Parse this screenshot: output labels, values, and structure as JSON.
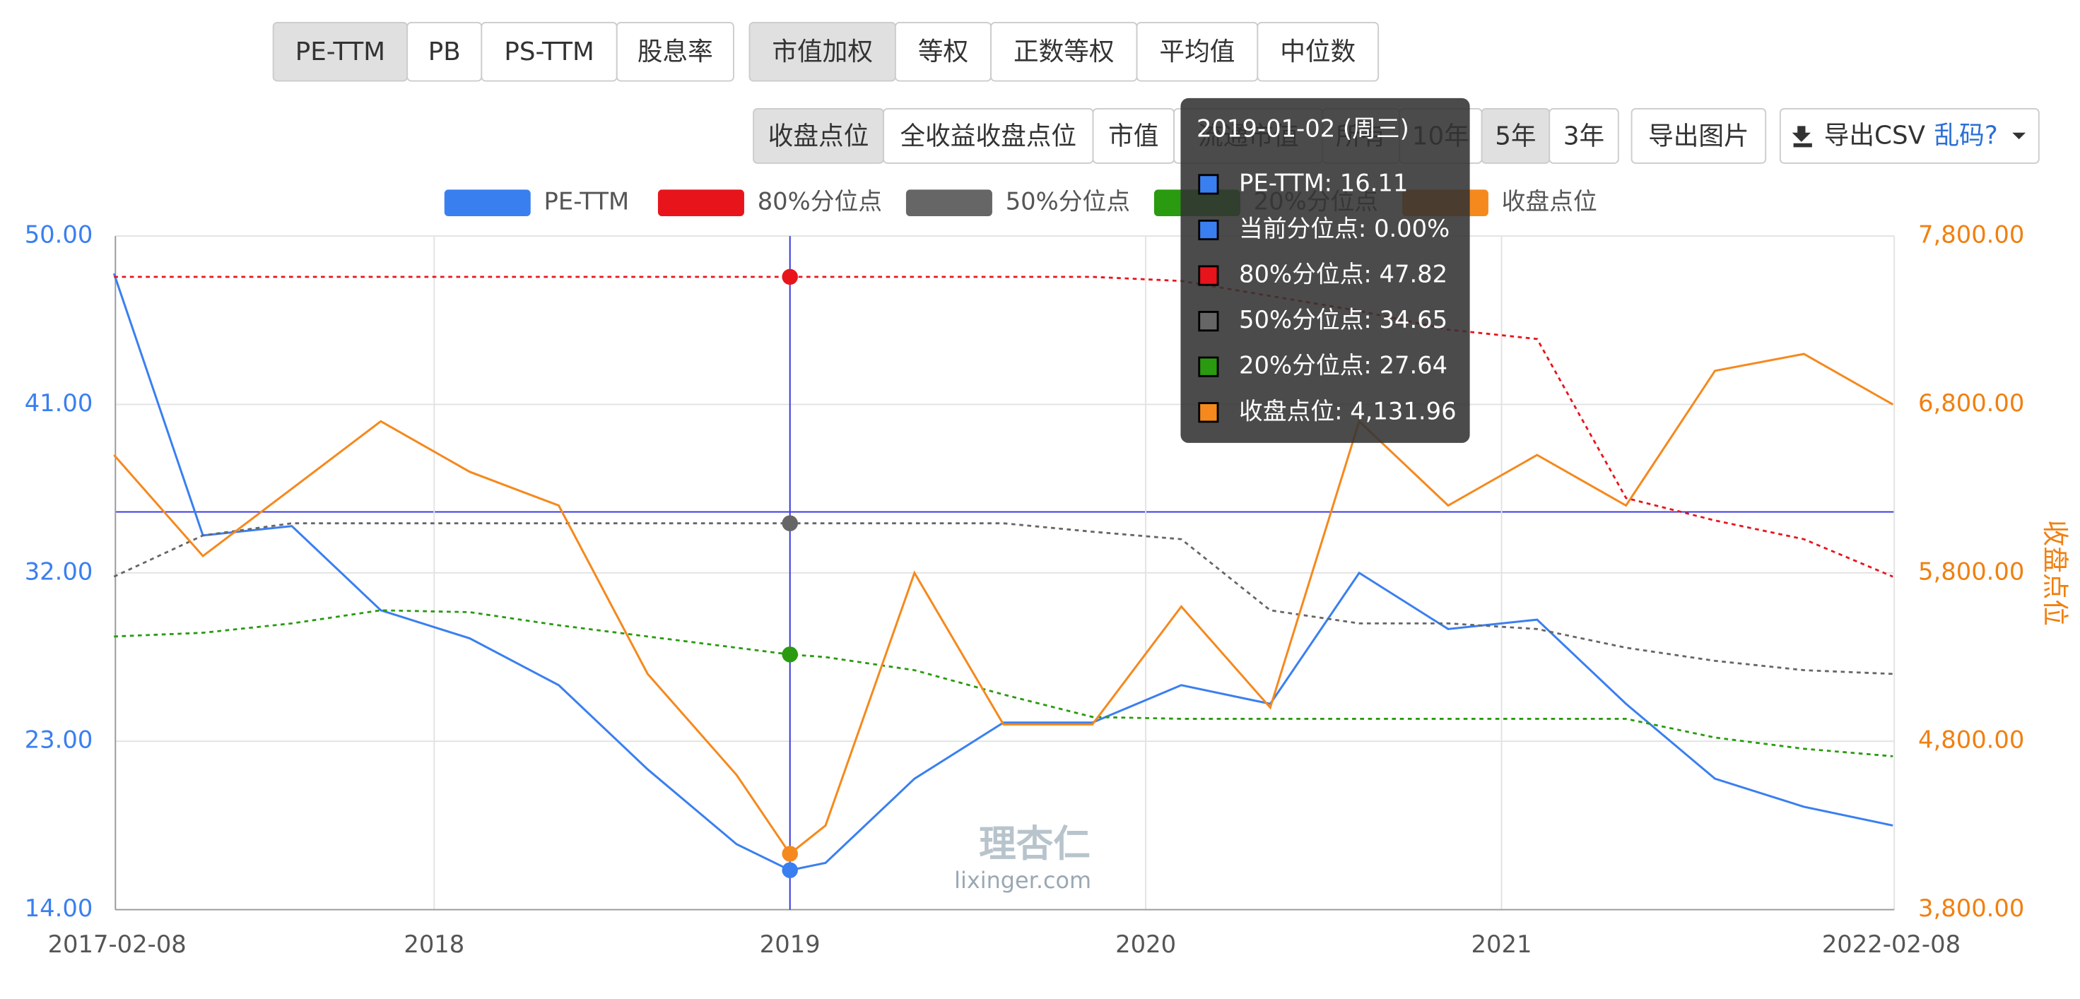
{
  "toolbar": {
    "metric": [
      "PE-TTM",
      "PB",
      "PS-TTM",
      "股息率"
    ],
    "weighting": [
      "市值加权",
      "等权",
      "正数等权",
      "平均值",
      "中位数"
    ],
    "price": [
      "收盘点位",
      "全收益收盘点位",
      "市值",
      "流通市值"
    ],
    "range": [
      "所有",
      "10年",
      "5年",
      "3年"
    ],
    "export_image": "导出图片",
    "export_csv": "导出CSV",
    "garbled": "乱码?"
  },
  "watermark": {
    "logo": "理杏仁",
    "site": "lixinger.com"
  },
  "tooltip": {
    "title": "2019-01-02 (周三)",
    "items": [
      "PE-TTM: 16.11",
      "当前分位点: 0.00%",
      "80%分位点: 47.82",
      "50%分位点: 34.65",
      "20%分位点: 27.64",
      "收盘点位: 4,131.96"
    ]
  },
  "chart_data": {
    "type": "line",
    "y2_label": "收盘点位",
    "grid": true,
    "legend": "top",
    "x": [
      2017.1,
      2017.35,
      2017.6,
      2017.85,
      2018.1,
      2018.35,
      2018.6,
      2018.85,
      2019.0,
      2019.1,
      2019.35,
      2019.6,
      2019.85,
      2020.1,
      2020.35,
      2020.6,
      2020.85,
      2021.1,
      2021.35,
      2021.6,
      2021.85,
      2022.1
    ],
    "xlim": [
      2017.104,
      2022.104
    ],
    "xticks": [
      {
        "value": 2017.104,
        "label": "2017-02-08"
      },
      2018,
      2019,
      2020,
      2021,
      {
        "value": 2022.104,
        "label": "2022-02-08"
      }
    ],
    "ylim": [
      14,
      50
    ],
    "yticks": [
      {
        "value": 14,
        "label": "14.00"
      },
      {
        "value": 23,
        "label": "23.00"
      },
      {
        "value": 32,
        "label": "32.00"
      },
      {
        "value": 41,
        "label": "41.00"
      },
      {
        "value": 50,
        "label": "50.00"
      }
    ],
    "y2lim": [
      3800,
      7800
    ],
    "y2ticks": [
      {
        "value": 3800,
        "label": "3,800.00"
      },
      {
        "value": 4800,
        "label": "4,800.00"
      },
      {
        "value": 5800,
        "label": "5,800.00"
      },
      {
        "value": 6800,
        "label": "6,800.00"
      },
      {
        "value": 7800,
        "label": "7,800.00"
      }
    ],
    "series": [
      {
        "name": "PE-TTM",
        "color": "#3a7ff0",
        "values": [
          48,
          34,
          34.5,
          30,
          28.5,
          26,
          21.5,
          17.5,
          16.11,
          16.5,
          21,
          24,
          24,
          26,
          25,
          32,
          29,
          29.5,
          25,
          21,
          19.5,
          18.5
        ]
      },
      {
        "name": "80%分位点",
        "color": "#e8141c",
        "dashed": true,
        "values": [
          47.82,
          47.82,
          47.82,
          47.82,
          47.82,
          47.82,
          47.82,
          47.82,
          47.82,
          47.82,
          47.82,
          47.82,
          47.82,
          47.6,
          46.8,
          46,
          45,
          44.5,
          36,
          34.8,
          33.8,
          31.8
        ]
      },
      {
        "name": "50%分位点",
        "color": "#666666",
        "dashed": true,
        "values": [
          31.8,
          34,
          34.65,
          34.65,
          34.65,
          34.65,
          34.65,
          34.65,
          34.65,
          34.65,
          34.65,
          34.65,
          34.2,
          33.8,
          30,
          29.3,
          29.3,
          29,
          28,
          27.3,
          26.8,
          26.6
        ]
      },
      {
        "name": "20%分位点",
        "color": "#2a9a10",
        "dashed": true,
        "values": [
          28.6,
          28.8,
          29.3,
          30,
          29.9,
          29.2,
          28.6,
          28,
          27.64,
          27.5,
          26.8,
          25.5,
          24.3,
          24.2,
          24.2,
          24.2,
          24.2,
          24.2,
          24.2,
          23.2,
          22.6,
          22.2
        ]
      },
      {
        "name": "收盘点位",
        "color": "#f5891d",
        "axis": "y2",
        "values": [
          6500,
          5900,
          6300,
          6700,
          6400,
          6200,
          5200,
          4600,
          4131.96,
          4300,
          5800,
          4900,
          4900,
          5600,
          5000,
          6700,
          6200,
          6500,
          6200,
          7000,
          7100,
          6800
        ]
      }
    ]
  }
}
